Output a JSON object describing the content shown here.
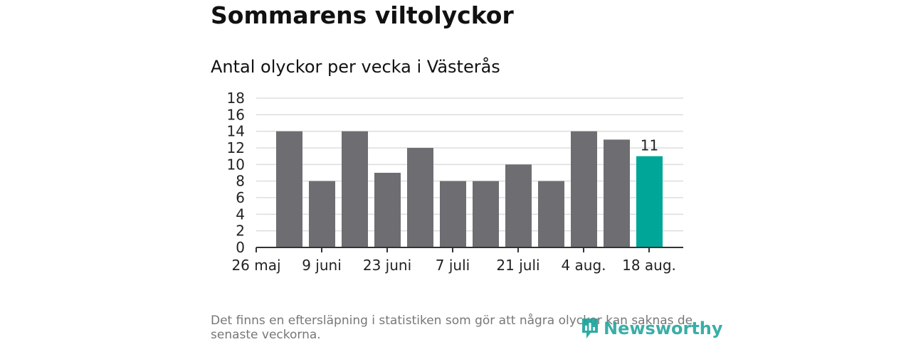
{
  "title": "Sommarens viltolyckor",
  "subtitle": "Antal olyckor per vecka i Västerås",
  "footnote": "Det finns en eftersläpning i statistiken som gör att några olyckor kan saknas de senaste veckorna.",
  "logo": {
    "text": "Newsworthy",
    "icon": "newsworthy-logo-icon",
    "color": "#1aa59c"
  },
  "colors": {
    "bar": "#6e6d72",
    "highlight": "#00a698",
    "grid": "#dddddd",
    "axis": "#333333"
  },
  "chart_data": {
    "type": "bar",
    "title": "Antal olyckor per vecka i Västerås",
    "xlabel": "",
    "ylabel": "",
    "ylim": [
      0,
      18
    ],
    "yticks": [
      "0",
      "2",
      "4",
      "6",
      "8",
      "10",
      "12",
      "14",
      "16",
      "18"
    ],
    "xtick_labels": [
      "26 maj",
      "9 juni",
      "23 juni",
      "7 juli",
      "21 juli",
      "4 aug.",
      "18 aug."
    ],
    "values": [
      14,
      8,
      14,
      9,
      12,
      8,
      8,
      10,
      8,
      14,
      13,
      11
    ],
    "highlight_index": 11,
    "data_labels": [
      {
        "index": 11,
        "text": "11"
      }
    ],
    "grid": true
  }
}
